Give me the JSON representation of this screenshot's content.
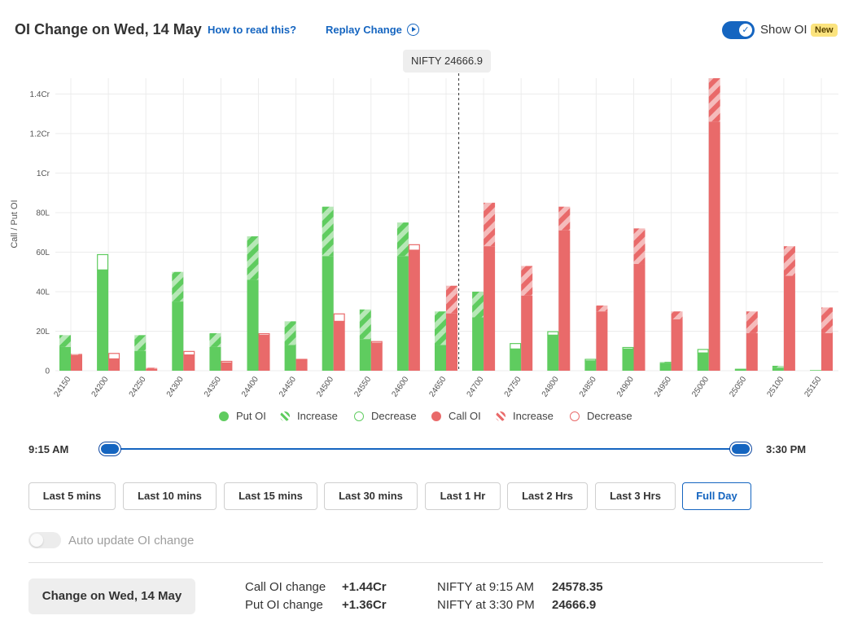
{
  "header": {
    "title": "OI Change on Wed, 14 May",
    "how_to_read": "How to read this?",
    "replay": "Replay Change",
    "show_oi_label": "Show OI",
    "new_badge": "New",
    "show_oi_on": true
  },
  "spot_label": "NIFTY 24666.9",
  "legend": [
    {
      "label": "Put OI",
      "kind": "solid",
      "color": "#5fcc5f"
    },
    {
      "label": "Increase",
      "kind": "hatch",
      "color": "#5fcc5f"
    },
    {
      "label": "Decrease",
      "kind": "outline",
      "color": "#5fcc5f"
    },
    {
      "label": "Call OI",
      "kind": "solid",
      "color": "#e96a6a"
    },
    {
      "label": "Increase",
      "kind": "hatch",
      "color": "#e96a6a"
    },
    {
      "label": "Decrease",
      "kind": "outline",
      "color": "#e96a6a"
    }
  ],
  "chart_data": {
    "type": "bar",
    "ylabel": "Call / Put OI",
    "ylim": [
      0,
      1.48
    ],
    "yunit": "Cr",
    "yticks": [
      {
        "v": 0,
        "label": "0"
      },
      {
        "v": 0.2,
        "label": "20L"
      },
      {
        "v": 0.4,
        "label": "40L"
      },
      {
        "v": 0.6,
        "label": "60L"
      },
      {
        "v": 0.8,
        "label": "80L"
      },
      {
        "v": 1.0,
        "label": "1Cr"
      },
      {
        "v": 1.2,
        "label": "1.2Cr"
      },
      {
        "v": 1.4,
        "label": "1.4Cr"
      }
    ],
    "grid": true,
    "spot_value": 24666.9,
    "colors": {
      "put": "#5fcc5f",
      "call": "#e96a6a"
    },
    "categories": [
      "24150",
      "24200",
      "24250",
      "24300",
      "24350",
      "24400",
      "24450",
      "24500",
      "24550",
      "24600",
      "24650",
      "24700",
      "24750",
      "24800",
      "24850",
      "24900",
      "24950",
      "25000",
      "25050",
      "25100",
      "25150"
    ],
    "series": [
      {
        "name": "Put OI",
        "base": [
          0.12,
          0.51,
          0.1,
          0.35,
          0.12,
          0.46,
          0.13,
          0.58,
          0.16,
          0.58,
          0.13,
          0.27,
          0.11,
          0.18,
          0.05,
          0.11,
          0.04,
          0.09,
          0.01,
          0.015,
          0.003
        ],
        "change": [
          0.06,
          0.08,
          0.08,
          0.15,
          0.07,
          0.22,
          0.12,
          0.25,
          0.15,
          0.17,
          0.17,
          0.13,
          0.03,
          0.02,
          0.01,
          0.01,
          0.005,
          0.02,
          0.0,
          0.01,
          0.0
        ],
        "change_type": [
          "inc",
          "dec",
          "inc",
          "inc",
          "inc",
          "inc",
          "inc",
          "inc",
          "inc",
          "inc",
          "inc",
          "inc",
          "dec",
          "dec",
          "dec",
          "dec",
          "inc",
          "dec",
          "inc",
          "inc",
          "inc"
        ]
      },
      {
        "name": "Call OI",
        "base": [
          0.08,
          0.06,
          0.01,
          0.08,
          0.04,
          0.18,
          0.06,
          0.25,
          0.14,
          0.61,
          0.29,
          0.63,
          0.38,
          0.71,
          0.3,
          0.54,
          0.26,
          1.26,
          0.19,
          0.48,
          0.19
        ],
        "change": [
          0.005,
          0.03,
          0.005,
          0.02,
          0.01,
          0.01,
          0.0,
          0.04,
          0.01,
          0.03,
          0.14,
          0.22,
          0.15,
          0.12,
          0.03,
          0.18,
          0.04,
          0.22,
          0.11,
          0.15,
          0.13
        ],
        "change_type": [
          "inc",
          "dec",
          "inc",
          "dec",
          "dec",
          "dec",
          "inc",
          "dec",
          "dec",
          "dec",
          "inc",
          "inc",
          "inc",
          "inc",
          "inc",
          "inc",
          "inc",
          "inc",
          "inc",
          "inc",
          "inc"
        ]
      }
    ]
  },
  "slider": {
    "start": "9:15 AM",
    "end": "3:30 PM"
  },
  "range_buttons": [
    {
      "label": "Last 5 mins",
      "active": false
    },
    {
      "label": "Last 10 mins",
      "active": false
    },
    {
      "label": "Last 15 mins",
      "active": false
    },
    {
      "label": "Last 30 mins",
      "active": false
    },
    {
      "label": "Last 1 Hr",
      "active": false
    },
    {
      "label": "Last 2 Hrs",
      "active": false
    },
    {
      "label": "Last 3 Hrs",
      "active": false
    },
    {
      "label": "Full Day",
      "active": true
    }
  ],
  "auto_update": {
    "label": "Auto update OI change",
    "on": false
  },
  "summary": {
    "button": "Change on Wed, 14 May",
    "call_label": "Call OI change",
    "call_value": "+1.44Cr",
    "put_label": "Put OI change",
    "put_value": "+1.36Cr",
    "nifty_start_label": "NIFTY at 9:15 AM",
    "nifty_start_value": "24578.35",
    "nifty_end_label": "NIFTY at 3:30 PM",
    "nifty_end_value": "24666.9"
  }
}
